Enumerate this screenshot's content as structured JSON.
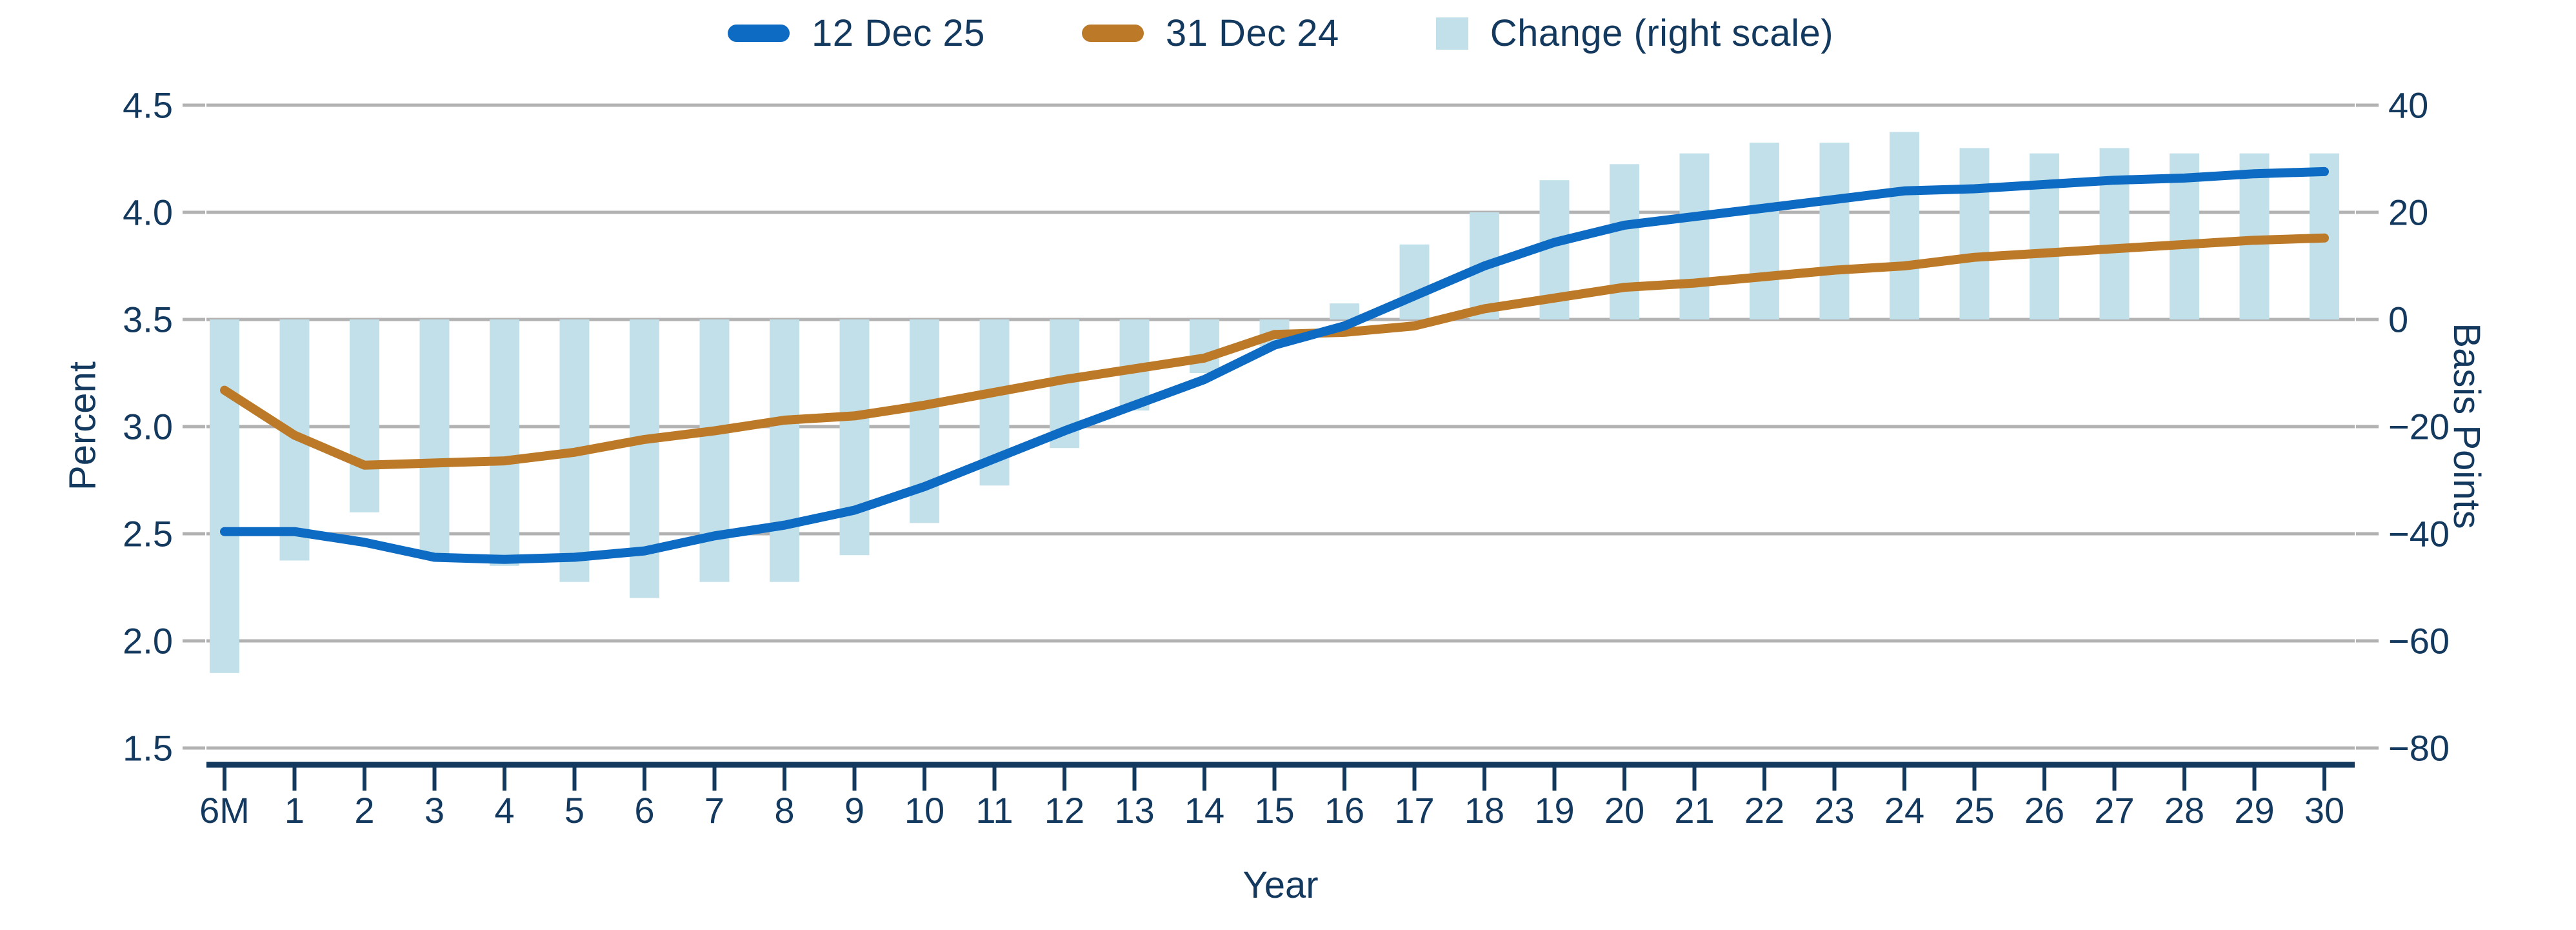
{
  "chart_data": {
    "type": "line-bar-combo",
    "title": "",
    "x_axis": {
      "label": "Year"
    },
    "left_axis": {
      "label": "Percent",
      "min": 1.5,
      "max": 4.5,
      "ticks": [
        4.5,
        4.0,
        3.5,
        3.0,
        2.5,
        2.0,
        1.5
      ]
    },
    "right_axis": {
      "label": "Basis Points",
      "min": -80,
      "max": 40,
      "ticks": [
        40,
        20,
        0,
        -20,
        -40,
        -60,
        -80
      ]
    },
    "grid": true,
    "legend_position": "top",
    "categories": [
      "6M",
      "1",
      "2",
      "3",
      "4",
      "5",
      "6",
      "7",
      "8",
      "9",
      "10",
      "11",
      "12",
      "13",
      "14",
      "15",
      "16",
      "17",
      "18",
      "19",
      "20",
      "21",
      "22",
      "23",
      "24",
      "25",
      "26",
      "27",
      "28",
      "29",
      "30"
    ],
    "series": [
      {
        "name": "12 Dec 25",
        "type": "line",
        "axis": "left",
        "color": "#0e6bc3",
        "values": [
          2.51,
          2.51,
          2.46,
          2.39,
          2.38,
          2.39,
          2.42,
          2.49,
          2.54,
          2.61,
          2.72,
          2.85,
          2.98,
          3.1,
          3.22,
          3.38,
          3.47,
          3.61,
          3.75,
          3.86,
          3.94,
          3.98,
          4.02,
          4.06,
          4.1,
          4.11,
          4.13,
          4.15,
          4.16,
          4.18,
          4.19
        ]
      },
      {
        "name": "31 Dec 24",
        "type": "line",
        "axis": "left",
        "color": "#bc7a28",
        "values": [
          3.17,
          2.96,
          2.82,
          2.83,
          2.84,
          2.88,
          2.94,
          2.98,
          3.03,
          3.05,
          3.1,
          3.16,
          3.22,
          3.27,
          3.32,
          3.43,
          3.44,
          3.47,
          3.55,
          3.6,
          3.65,
          3.67,
          3.7,
          3.73,
          3.75,
          3.79,
          3.81,
          3.83,
          3.85,
          3.87,
          3.88
        ]
      },
      {
        "name": "Change (right scale)",
        "type": "bar",
        "axis": "right",
        "color": "#c1e0ea",
        "values": [
          -66,
          -45,
          -36,
          -44,
          -46,
          -49,
          -52,
          -49,
          -49,
          -44,
          -38,
          -31,
          -24,
          -17,
          -10,
          -5,
          3,
          14,
          20,
          26,
          29,
          31,
          33,
          33,
          35,
          32,
          31,
          32,
          31,
          31,
          31
        ]
      }
    ]
  },
  "colors": {
    "text": "#14395f",
    "gridline": "#b2b2b2",
    "axis_line": "#14395f",
    "background": "#ffffff"
  }
}
